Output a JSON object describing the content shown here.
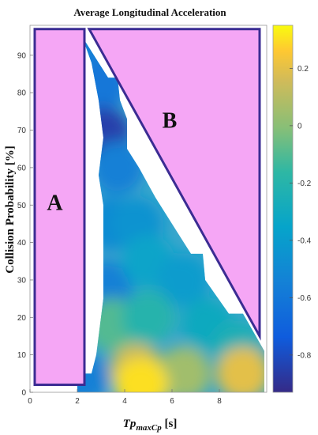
{
  "chart_data": {
    "type": "heatmap",
    "title": "Average Longitudinal Acceleration",
    "xlabel_main": "Tp",
    "xlabel_sub": "maxCp",
    "xlabel_unit": " [s]",
    "ylabel": "Collision Probability [%]",
    "xlim": [
      0,
      10
    ],
    "ylim": [
      0,
      98
    ],
    "x_ticks": [
      0,
      2,
      4,
      6,
      8
    ],
    "y_ticks": [
      0,
      10,
      20,
      30,
      40,
      50,
      60,
      70,
      80,
      90
    ],
    "grid": false,
    "colorbar": {
      "range": [
        -0.93,
        0.35
      ],
      "ticks": [
        0.2,
        0,
        -0.2,
        -0.4,
        -0.6,
        -0.8
      ],
      "tick_labels": [
        "0.2",
        "0",
        "-0.2",
        "-0.4",
        "-0.6",
        "-0.8"
      ],
      "colormap": "parula"
    },
    "data_region": {
      "outline": [
        [
          2.2,
          95
        ],
        [
          2.5,
          92
        ],
        [
          3.3,
          84
        ],
        [
          3.7,
          84
        ],
        [
          3.8,
          78
        ],
        [
          4.1,
          73
        ],
        [
          4.1,
          65
        ],
        [
          4.6,
          60
        ],
        [
          5.3,
          52
        ],
        [
          6.0,
          45
        ],
        [
          6.8,
          37
        ],
        [
          7.3,
          37
        ],
        [
          7.4,
          30
        ],
        [
          8.4,
          21
        ],
        [
          9.0,
          21
        ],
        [
          9.9,
          11
        ],
        [
          9.9,
          0
        ],
        [
          2.0,
          0
        ],
        [
          2.0,
          5
        ],
        [
          2.6,
          5
        ],
        [
          2.8,
          10
        ],
        [
          3.1,
          25
        ],
        [
          3.1,
          50
        ],
        [
          2.9,
          58
        ],
        [
          3.1,
          68
        ],
        [
          2.9,
          78
        ],
        [
          2.6,
          88
        ]
      ],
      "values": [
        {
          "x": 2.3,
          "y": 93,
          "value": -0.55
        },
        {
          "x": 3.0,
          "y": 82,
          "value": -0.6
        },
        {
          "x": 3.1,
          "y": 69,
          "value": -0.85
        },
        {
          "x": 3.7,
          "y": 60,
          "value": -0.55
        },
        {
          "x": 3.4,
          "y": 45,
          "value": -0.5
        },
        {
          "x": 4.5,
          "y": 45,
          "value": -0.45
        },
        {
          "x": 3.2,
          "y": 28,
          "value": -0.55
        },
        {
          "x": 5.0,
          "y": 35,
          "value": -0.35
        },
        {
          "x": 6.5,
          "y": 30,
          "value": -0.4
        },
        {
          "x": 3.5,
          "y": 18,
          "value": -0.1
        },
        {
          "x": 5.0,
          "y": 20,
          "value": -0.2
        },
        {
          "x": 7.5,
          "y": 18,
          "value": -0.3
        },
        {
          "x": 8.8,
          "y": 12,
          "value": -0.25
        },
        {
          "x": 4.5,
          "y": 6,
          "value": 0.15
        },
        {
          "x": 6.5,
          "y": 5,
          "value": 0.05
        },
        {
          "x": 9.0,
          "y": 5,
          "value": 0.2
        },
        {
          "x": 4.7,
          "y": 2,
          "value": 0.3
        },
        {
          "x": 2.2,
          "y": 4,
          "value": -0.55
        }
      ]
    },
    "annotations": [
      {
        "label": "A",
        "x": 1.05,
        "y": 50,
        "region": [
          [
            0.2,
            97
          ],
          [
            2.3,
            97
          ],
          [
            2.3,
            2
          ],
          [
            0.2,
            2
          ]
        ],
        "fill": "#f5a6f5",
        "stroke": "#3b2c93"
      },
      {
        "label": "B",
        "x": 5.9,
        "y": 72,
        "region": [
          [
            2.5,
            97
          ],
          [
            9.7,
            97
          ],
          [
            9.7,
            15
          ]
        ],
        "fill": "#f5a6f5",
        "stroke": "#3b2c93"
      }
    ]
  }
}
